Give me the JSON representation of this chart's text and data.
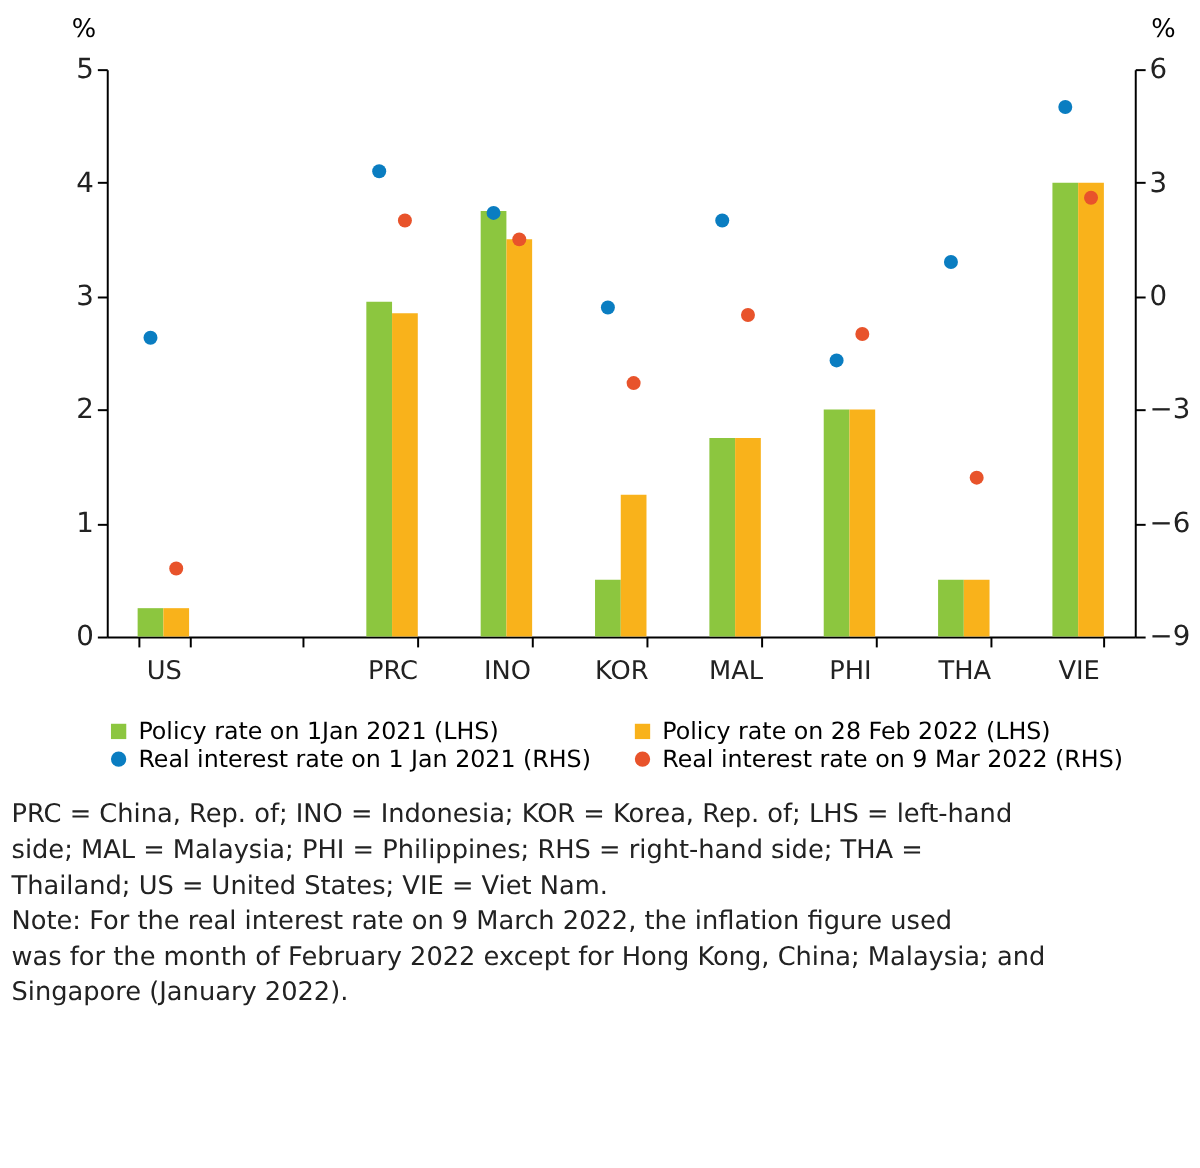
{
  "chart_data": {
    "type": "bar",
    "ylabel": "%",
    "y2label": "%",
    "categories": [
      "US",
      null,
      "PRC",
      "INO",
      "KOR",
      "MAL",
      "PHI",
      "THA",
      "VIE"
    ],
    "series": [
      {
        "name": "Policy rate on 1Jan 2021 (LHS)",
        "color": "#8cc63f",
        "values": [
          0.25,
          null,
          2.95,
          3.75,
          0.5,
          1.75,
          2.0,
          0.5,
          4.0
        ]
      },
      {
        "name": "Policy rate on 28 Feb 2022 (LHS)",
        "color": "#f9b21b",
        "values": [
          0.25,
          null,
          2.85,
          3.5,
          1.25,
          1.75,
          2.0,
          0.5,
          4.0
        ]
      },
      {
        "name": "Real interest rate on 1 Jan 2021 (RHS)",
        "type": "scatter",
        "axis": "y2",
        "marker": "circle",
        "color": "#0a7dc1",
        "values": [
          -1.1,
          null,
          3.3,
          2.2,
          -0.3,
          2.0,
          -1.7,
          0.9,
          5.0
        ]
      },
      {
        "name": "Real interest rate on 9 Mar 2022 (RHS)",
        "type": "scatter",
        "axis": "y2",
        "marker": "circle",
        "color": "#e8532b",
        "values": [
          -7.2,
          null,
          2.0,
          1.5,
          -2.3,
          -0.5,
          -1.0,
          -4.8,
          2.6
        ]
      }
    ],
    "ylim": [
      0,
      5
    ],
    "yticks": [
      0,
      1,
      2,
      3,
      4,
      5
    ],
    "y2lim": [
      -9,
      6
    ],
    "y2ticks": [
      -9,
      -6,
      -3,
      0,
      3,
      6
    ],
    "legend": "bottom",
    "grid": false,
    "annotations": [
      "PRC = China, Rep. of; INO = Indonesia; KOR = Korea, Rep. of; LHS = left-hand side; MAL = Malaysia; PHI = Philippines; RHS = right-hand side; THA = Thailand; US = United States; VIE = Viet Nam.",
      "Note: For the real interest rate on 9 March 2022, the inflation figure used was for the month of February 2022 except for Hong Kong, China; Malaysia; and Singapore (January 2022)."
    ]
  }
}
